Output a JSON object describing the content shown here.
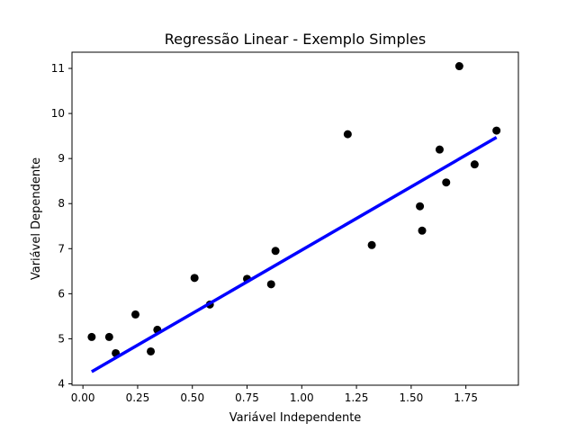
{
  "chart_data": {
    "type": "scatter",
    "title": "Regressão Linear - Exemplo Simples",
    "xlabel": "Variável Independente",
    "ylabel": "Variável Dependente",
    "xlim": [
      -0.05,
      1.99
    ],
    "ylim": [
      3.97,
      11.36
    ],
    "x_ticks": [
      0.0,
      0.25,
      0.5,
      0.75,
      1.0,
      1.25,
      1.5,
      1.75
    ],
    "x_tick_labels": [
      "0.00",
      "0.25",
      "0.50",
      "0.75",
      "1.00",
      "1.25",
      "1.50",
      "1.75"
    ],
    "y_ticks": [
      4,
      5,
      6,
      7,
      8,
      9,
      10,
      11
    ],
    "y_tick_labels": [
      "4",
      "5",
      "6",
      "7",
      "8",
      "9",
      "10",
      "11"
    ],
    "grid": false,
    "series": [
      {
        "kind": "scatter",
        "color": "#000000",
        "points": [
          [
            0.04,
            5.04
          ],
          [
            0.12,
            5.04
          ],
          [
            0.15,
            4.68
          ],
          [
            0.24,
            5.54
          ],
          [
            0.31,
            4.72
          ],
          [
            0.34,
            5.2
          ],
          [
            0.51,
            6.35
          ],
          [
            0.58,
            5.76
          ],
          [
            0.75,
            6.33
          ],
          [
            0.86,
            6.21
          ],
          [
            0.88,
            6.95
          ],
          [
            1.21,
            9.54
          ],
          [
            1.32,
            7.08
          ],
          [
            1.54,
            7.94
          ],
          [
            1.55,
            7.4
          ],
          [
            1.63,
            9.2
          ],
          [
            1.66,
            8.47
          ],
          [
            1.72,
            11.05
          ],
          [
            1.79,
            8.87
          ],
          [
            1.89,
            9.62
          ]
        ]
      },
      {
        "kind": "line",
        "color": "#0000ff",
        "points": [
          [
            0.04,
            4.27
          ],
          [
            1.89,
            9.47
          ]
        ]
      }
    ]
  }
}
